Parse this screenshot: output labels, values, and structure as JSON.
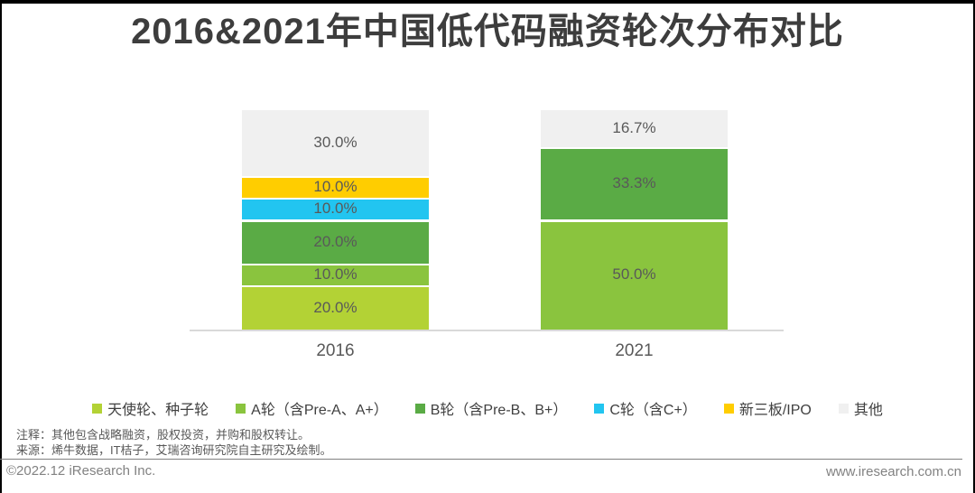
{
  "header": {
    "title": "2016&2021年中国低代码融资轮次分布对比"
  },
  "chart_data": {
    "type": "bar",
    "variant": "stacked-column-percent",
    "title": "2016&2021年中国低代码融资轮次分布对比",
    "categories": [
      "2016",
      "2021"
    ],
    "unit": "%",
    "ylim": [
      0,
      100
    ],
    "grid": false,
    "legend_position": "bottom",
    "series": [
      {
        "name": "天使轮、种子轮",
        "color": "#b3d235",
        "values": [
          20.0,
          0
        ]
      },
      {
        "name": "A轮（含Pre-A、A+）",
        "color": "#8ac43e",
        "values": [
          10.0,
          50.0
        ]
      },
      {
        "name": "B轮（含Pre-B、B+）",
        "color": "#5aab45",
        "values": [
          20.0,
          33.3
        ]
      },
      {
        "name": "C轮（含C+）",
        "color": "#22c5f0",
        "values": [
          10.0,
          0
        ]
      },
      {
        "name": "新三板/IPO",
        "color": "#ffcd00",
        "values": [
          10.0,
          0
        ]
      },
      {
        "name": "其他",
        "color": "#f0f0f0",
        "values": [
          30.0,
          16.7
        ]
      }
    ],
    "data_labels": [
      [
        "20.0%",
        "10.0%",
        "20.0%",
        "10.0%",
        "10.0%",
        "30.0%"
      ],
      [
        "50.0%",
        "33.3%",
        "16.7%"
      ]
    ]
  },
  "footnotes": {
    "note": "注释：其他包含战略融资，股权投资，并购和股权转让。",
    "source": "来源：烯牛数据，IT桔子，艾瑞咨询研究院自主研究及绘制。"
  },
  "footer": {
    "copyright": "©2022.12 iResearch Inc.",
    "website": "www.iresearch.com.cn"
  },
  "colors": {
    "border": "#000000",
    "title_text": "#3d3d3d",
    "axis_line": "#d9d9d9",
    "label_text": "#595959",
    "footer_text": "#828282"
  }
}
